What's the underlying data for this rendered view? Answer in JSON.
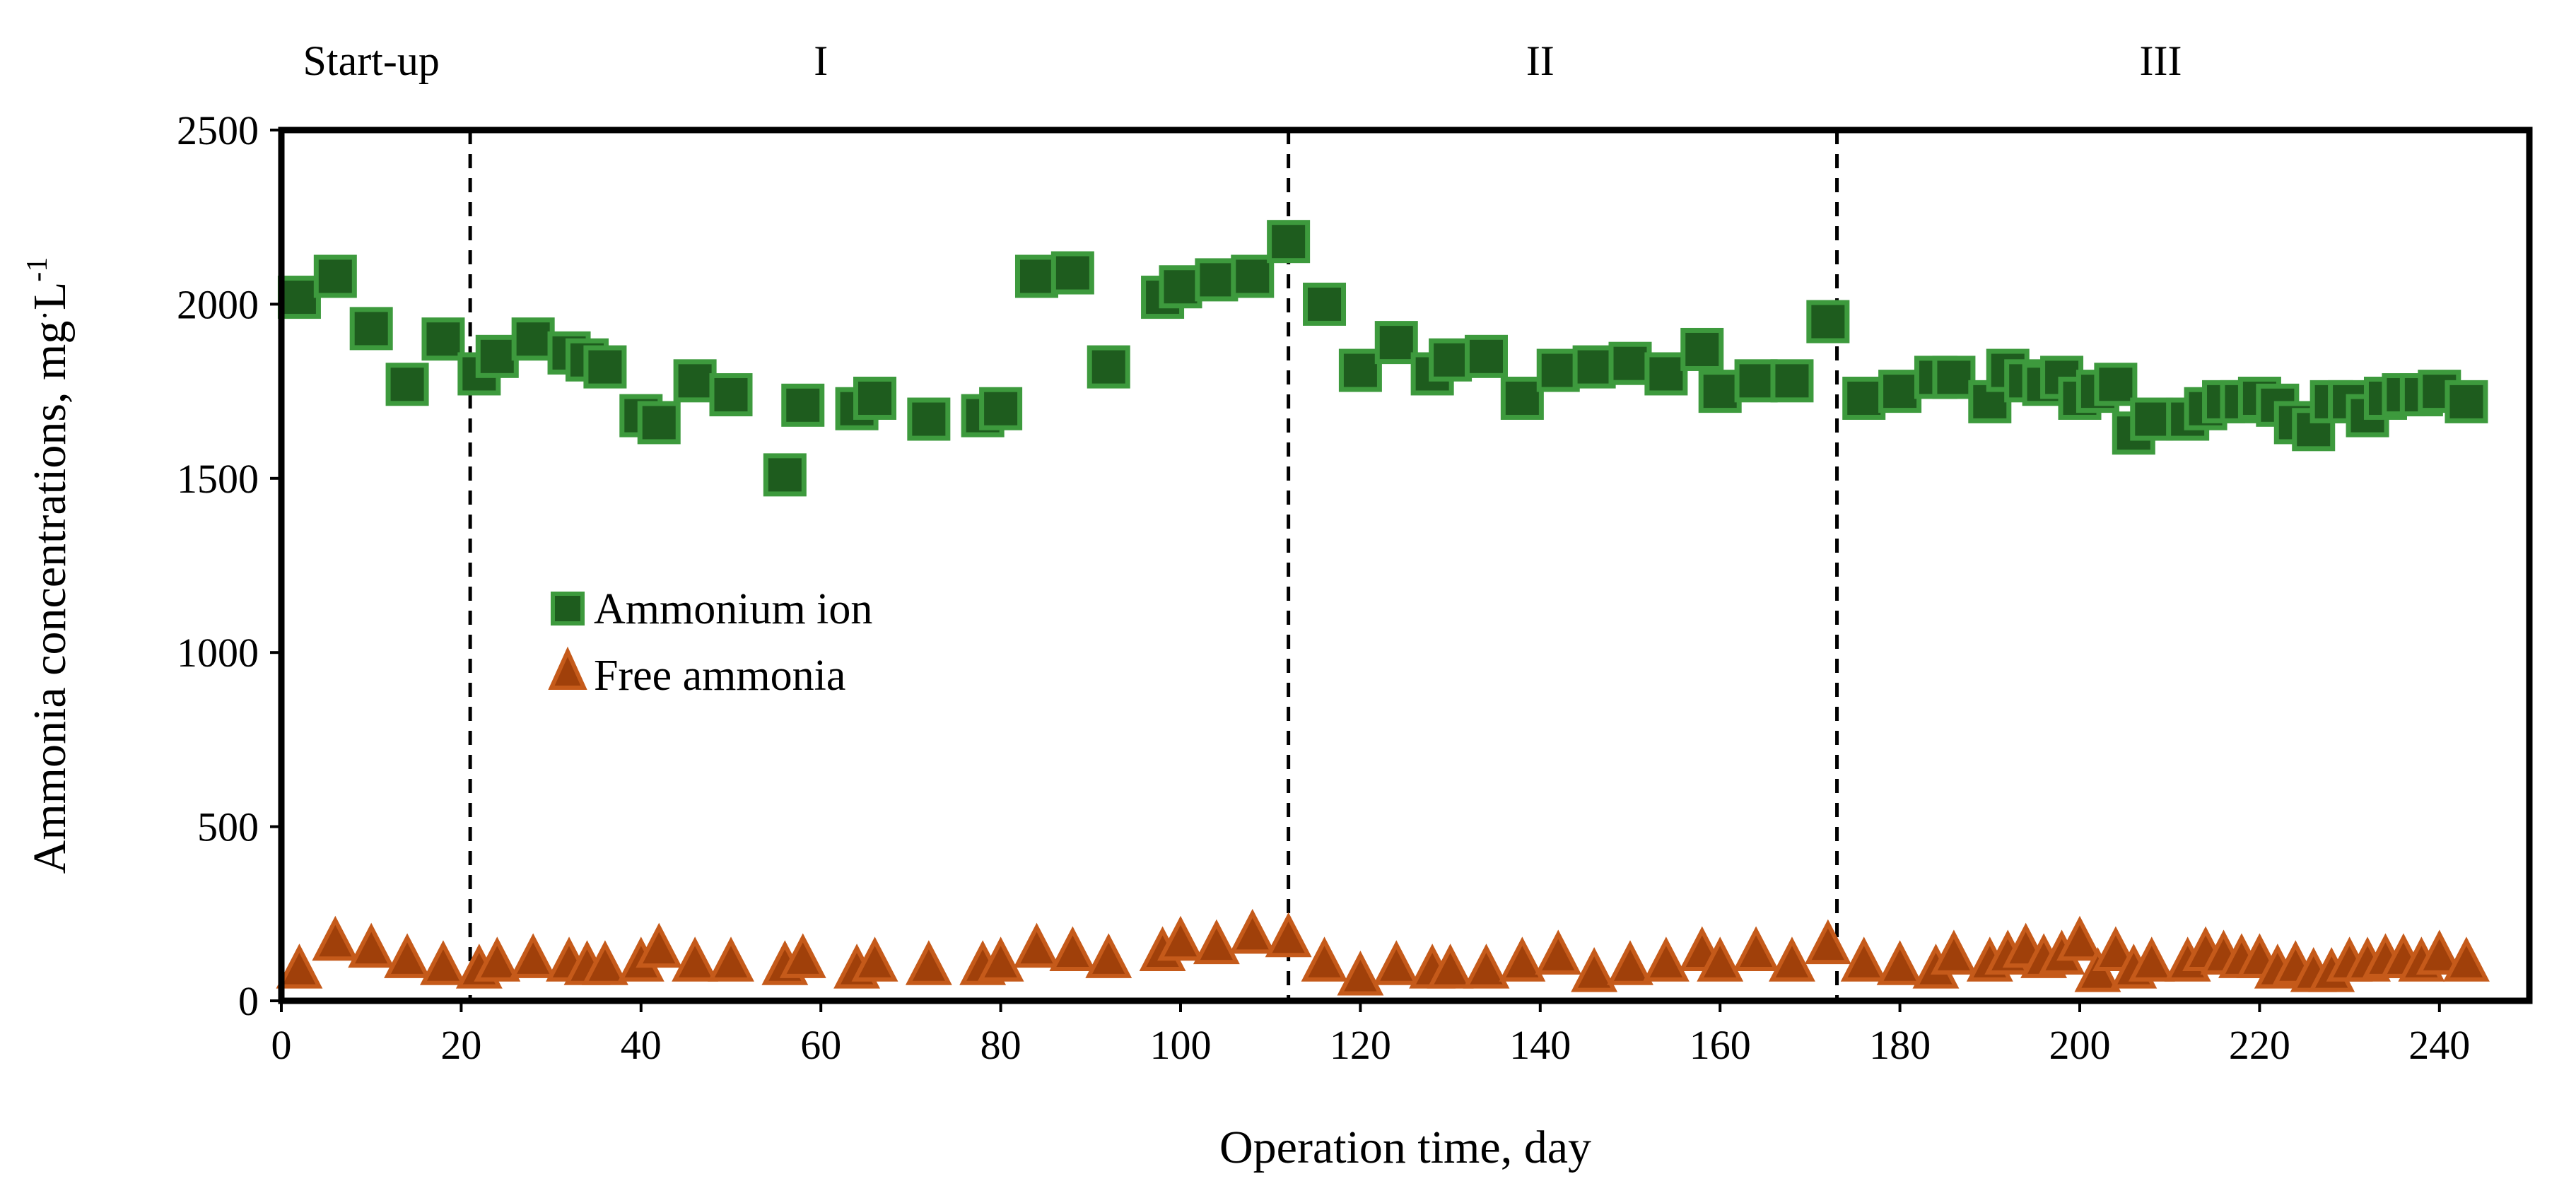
{
  "chart_data": {
    "type": "scatter",
    "title": "",
    "xlabel": "Operation time, day",
    "ylabel_main": "Ammonia concentrations, mg",
    "ylabel_dot": "·",
    "ylabel_unit": "L",
    "ylabel_exp": "-1",
    "xlim": [
      0,
      250
    ],
    "ylim": [
      0,
      2500
    ],
    "xticks": [
      0,
      20,
      40,
      60,
      80,
      100,
      120,
      140,
      160,
      180,
      200,
      220,
      240
    ],
    "yticks": [
      0,
      500,
      1000,
      1500,
      2000,
      2500
    ],
    "grid": false,
    "legend_position": "middle-left",
    "phase_boundaries": [
      21,
      112,
      173
    ],
    "phases": [
      {
        "label": "Start-up",
        "x": 10
      },
      {
        "label": "I",
        "x": 60
      },
      {
        "label": "II",
        "x": 140
      },
      {
        "label": "III",
        "x": 209
      }
    ],
    "series": [
      {
        "name": "Ammonium ion",
        "marker": "square",
        "color": "#1e5c1e",
        "edge_color": "#3d9a3d",
        "points": [
          [
            2,
            2020
          ],
          [
            6,
            2080
          ],
          [
            10,
            1930
          ],
          [
            14,
            1770
          ],
          [
            18,
            1900
          ],
          [
            22,
            1800
          ],
          [
            24,
            1850
          ],
          [
            28,
            1900
          ],
          [
            32,
            1860
          ],
          [
            34,
            1840
          ],
          [
            36,
            1820
          ],
          [
            40,
            1680
          ],
          [
            42,
            1660
          ],
          [
            46,
            1780
          ],
          [
            50,
            1740
          ],
          [
            56,
            1510
          ],
          [
            58,
            1710
          ],
          [
            64,
            1700
          ],
          [
            66,
            1730
          ],
          [
            72,
            1670
          ],
          [
            78,
            1680
          ],
          [
            80,
            1700
          ],
          [
            84,
            2080
          ],
          [
            88,
            2090
          ],
          [
            92,
            1820
          ],
          [
            98,
            2020
          ],
          [
            100,
            2050
          ],
          [
            104,
            2070
          ],
          [
            108,
            2080
          ],
          [
            112,
            2180
          ],
          [
            116,
            2000
          ],
          [
            120,
            1810
          ],
          [
            124,
            1890
          ],
          [
            128,
            1800
          ],
          [
            130,
            1840
          ],
          [
            134,
            1850
          ],
          [
            138,
            1730
          ],
          [
            142,
            1810
          ],
          [
            146,
            1820
          ],
          [
            150,
            1830
          ],
          [
            154,
            1800
          ],
          [
            158,
            1870
          ],
          [
            160,
            1750
          ],
          [
            164,
            1780
          ],
          [
            168,
            1780
          ],
          [
            172,
            1950
          ],
          [
            176,
            1730
          ],
          [
            180,
            1750
          ],
          [
            184,
            1790
          ],
          [
            186,
            1790
          ],
          [
            190,
            1720
          ],
          [
            192,
            1810
          ],
          [
            194,
            1780
          ],
          [
            196,
            1770
          ],
          [
            198,
            1790
          ],
          [
            200,
            1730
          ],
          [
            202,
            1750
          ],
          [
            204,
            1770
          ],
          [
            206,
            1630
          ],
          [
            208,
            1670
          ],
          [
            212,
            1670
          ],
          [
            214,
            1700
          ],
          [
            216,
            1720
          ],
          [
            218,
            1720
          ],
          [
            220,
            1730
          ],
          [
            222,
            1710
          ],
          [
            224,
            1660
          ],
          [
            226,
            1640
          ],
          [
            228,
            1720
          ],
          [
            230,
            1720
          ],
          [
            232,
            1680
          ],
          [
            234,
            1730
          ],
          [
            236,
            1740
          ],
          [
            238,
            1740
          ],
          [
            240,
            1750
          ],
          [
            243,
            1720
          ]
        ]
      },
      {
        "name": "Free ammonia",
        "marker": "triangle",
        "color": "#a0400a",
        "edge_color": "#c55a1a",
        "points": [
          [
            2,
            90
          ],
          [
            6,
            170
          ],
          [
            10,
            150
          ],
          [
            14,
            120
          ],
          [
            18,
            100
          ],
          [
            22,
            90
          ],
          [
            24,
            110
          ],
          [
            28,
            120
          ],
          [
            32,
            110
          ],
          [
            34,
            100
          ],
          [
            36,
            100
          ],
          [
            40,
            110
          ],
          [
            42,
            150
          ],
          [
            46,
            110
          ],
          [
            50,
            110
          ],
          [
            56,
            100
          ],
          [
            58,
            120
          ],
          [
            64,
            90
          ],
          [
            66,
            110
          ],
          [
            72,
            100
          ],
          [
            78,
            100
          ],
          [
            80,
            110
          ],
          [
            84,
            150
          ],
          [
            88,
            140
          ],
          [
            92,
            120
          ],
          [
            98,
            140
          ],
          [
            100,
            170
          ],
          [
            104,
            160
          ],
          [
            108,
            190
          ],
          [
            112,
            180
          ],
          [
            116,
            110
          ],
          [
            120,
            70
          ],
          [
            124,
            100
          ],
          [
            128,
            90
          ],
          [
            130,
            90
          ],
          [
            134,
            90
          ],
          [
            138,
            110
          ],
          [
            142,
            130
          ],
          [
            146,
            80
          ],
          [
            150,
            100
          ],
          [
            154,
            110
          ],
          [
            158,
            140
          ],
          [
            160,
            110
          ],
          [
            164,
            140
          ],
          [
            168,
            110
          ],
          [
            172,
            160
          ],
          [
            176,
            110
          ],
          [
            180,
            100
          ],
          [
            184,
            90
          ],
          [
            186,
            130
          ],
          [
            190,
            110
          ],
          [
            192,
            130
          ],
          [
            194,
            150
          ],
          [
            196,
            120
          ],
          [
            198,
            130
          ],
          [
            200,
            170
          ],
          [
            202,
            80
          ],
          [
            204,
            140
          ],
          [
            206,
            90
          ],
          [
            208,
            110
          ],
          [
            212,
            110
          ],
          [
            214,
            140
          ],
          [
            216,
            130
          ],
          [
            218,
            120
          ],
          [
            220,
            120
          ],
          [
            222,
            90
          ],
          [
            224,
            100
          ],
          [
            226,
            80
          ],
          [
            228,
            80
          ],
          [
            230,
            110
          ],
          [
            232,
            110
          ],
          [
            234,
            120
          ],
          [
            236,
            120
          ],
          [
            238,
            110
          ],
          [
            240,
            130
          ],
          [
            243,
            110
          ]
        ]
      }
    ]
  }
}
